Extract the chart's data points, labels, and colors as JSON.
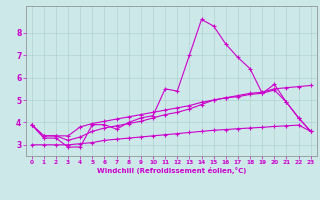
{
  "xlabel": "Windchill (Refroidissement éolien,°C)",
  "background_color": "#cce8e8",
  "line_color": "#cc00cc",
  "xlim": [
    -0.5,
    23.5
  ],
  "ylim": [
    2.5,
    9.2
  ],
  "yticks": [
    3,
    4,
    5,
    6,
    7,
    8
  ],
  "xticks": [
    0,
    1,
    2,
    3,
    4,
    5,
    6,
    7,
    8,
    9,
    10,
    11,
    12,
    13,
    14,
    15,
    16,
    17,
    18,
    19,
    20,
    21,
    22,
    23
  ],
  "line1": [
    3.9,
    3.3,
    3.3,
    2.9,
    2.9,
    3.9,
    3.9,
    3.7,
    4.0,
    4.2,
    4.3,
    5.5,
    5.4,
    7.0,
    8.6,
    8.3,
    7.5,
    6.9,
    6.4,
    5.3,
    5.7,
    4.9,
    4.2,
    3.6
  ],
  "line2": [
    3.9,
    3.4,
    3.4,
    3.4,
    3.8,
    3.95,
    4.05,
    4.15,
    4.25,
    4.35,
    4.45,
    4.55,
    4.65,
    4.75,
    4.9,
    5.0,
    5.1,
    5.2,
    5.3,
    5.35,
    5.5,
    5.55,
    5.6,
    5.65
  ],
  "line3": [
    3.9,
    3.4,
    3.4,
    3.2,
    3.35,
    3.6,
    3.75,
    3.85,
    3.95,
    4.05,
    4.2,
    4.35,
    4.45,
    4.6,
    4.8,
    5.0,
    5.1,
    5.15,
    5.25,
    5.3,
    5.45,
    4.9,
    4.2,
    3.6
  ],
  "line4": [
    3.0,
    3.0,
    3.0,
    3.0,
    3.05,
    3.1,
    3.2,
    3.25,
    3.3,
    3.35,
    3.4,
    3.45,
    3.5,
    3.55,
    3.6,
    3.65,
    3.68,
    3.72,
    3.75,
    3.78,
    3.82,
    3.85,
    3.88,
    3.6
  ]
}
